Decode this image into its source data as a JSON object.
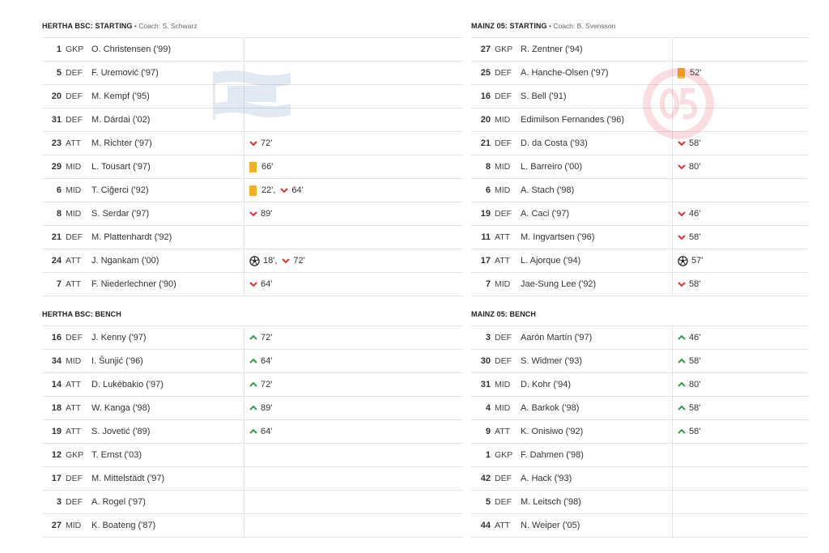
{
  "left": {
    "starting_title": "HERTHA BSC: STARTING",
    "starting_coach": " • Coach: S. Schwarz",
    "bench_title": "HERTHA BSC: BENCH",
    "starting": [
      {
        "num": "1",
        "pos": "GKP",
        "name": "O. Christensen ('99)",
        "events": []
      },
      {
        "num": "5",
        "pos": "DEF",
        "name": "F. Uremović ('97)",
        "events": []
      },
      {
        "num": "20",
        "pos": "DEF",
        "name": "M. Kempf ('95)",
        "events": []
      },
      {
        "num": "31",
        "pos": "DEF",
        "name": "M. Dárdai ('02)",
        "events": []
      },
      {
        "num": "23",
        "pos": "ATT",
        "name": "M. Richter ('97)",
        "events": [
          {
            "type": "sub-out",
            "min": "72'"
          }
        ]
      },
      {
        "num": "29",
        "pos": "MID",
        "name": "L. Tousart ('97)",
        "events": [
          {
            "type": "yellow",
            "min": "66'"
          }
        ]
      },
      {
        "num": "6",
        "pos": "MID",
        "name": "T. Ciğerci ('92)",
        "events": [
          {
            "type": "yellow",
            "min": "22',"
          },
          {
            "type": "sub-out",
            "min": "64'"
          }
        ]
      },
      {
        "num": "8",
        "pos": "MID",
        "name": "S. Serdar ('97)",
        "events": [
          {
            "type": "sub-out",
            "min": "89'"
          }
        ]
      },
      {
        "num": "21",
        "pos": "DEF",
        "name": "M. Plattenhardt ('92)",
        "events": []
      },
      {
        "num": "24",
        "pos": "ATT",
        "name": "J. Ngankam ('00)",
        "events": [
          {
            "type": "goal",
            "min": "18',"
          },
          {
            "type": "sub-out",
            "min": "72'"
          }
        ]
      },
      {
        "num": "7",
        "pos": "ATT",
        "name": "F. Niederlechner ('90)",
        "events": [
          {
            "type": "sub-out",
            "min": "64'"
          }
        ]
      }
    ],
    "bench": [
      {
        "num": "16",
        "pos": "DEF",
        "name": "J. Kenny ('97)",
        "events": [
          {
            "type": "sub-in",
            "min": "72'"
          }
        ]
      },
      {
        "num": "34",
        "pos": "MID",
        "name": "I. Šunjić ('96)",
        "events": [
          {
            "type": "sub-in",
            "min": "64'"
          }
        ]
      },
      {
        "num": "14",
        "pos": "ATT",
        "name": "D. Lukébakio ('97)",
        "events": [
          {
            "type": "sub-in",
            "min": "72'"
          }
        ]
      },
      {
        "num": "18",
        "pos": "ATT",
        "name": "W. Kanga ('98)",
        "events": [
          {
            "type": "sub-in",
            "min": "89'"
          }
        ]
      },
      {
        "num": "19",
        "pos": "ATT",
        "name": "S. Jovetić ('89)",
        "events": [
          {
            "type": "sub-in",
            "min": "64'"
          }
        ]
      },
      {
        "num": "12",
        "pos": "GKP",
        "name": "T. Ernst ('03)",
        "events": []
      },
      {
        "num": "17",
        "pos": "DEF",
        "name": "M. Mittelstädt ('97)",
        "events": []
      },
      {
        "num": "3",
        "pos": "DEF",
        "name": "A. Rogel ('97)",
        "events": []
      },
      {
        "num": "27",
        "pos": "MID",
        "name": "K. Boateng ('87)",
        "events": []
      }
    ]
  },
  "right": {
    "starting_title": "MAINZ 05: STARTING",
    "starting_coach": " • Coach: B. Svensson",
    "bench_title": "MAINZ 05: BENCH",
    "starting": [
      {
        "num": "27",
        "pos": "GKP",
        "name": "R. Zentner ('94)",
        "events": []
      },
      {
        "num": "25",
        "pos": "DEF",
        "name": "A. Hanche-Olsen ('97)",
        "events": [
          {
            "type": "yellow",
            "min": "52'"
          }
        ]
      },
      {
        "num": "16",
        "pos": "DEF",
        "name": "S. Bell ('91)",
        "events": []
      },
      {
        "num": "20",
        "pos": "MID",
        "name": "Edimilson Fernandes ('96)",
        "events": []
      },
      {
        "num": "21",
        "pos": "DEF",
        "name": "D. da Costa ('93)",
        "events": [
          {
            "type": "sub-out",
            "min": "58'"
          }
        ]
      },
      {
        "num": "8",
        "pos": "MID",
        "name": "L. Barreiro ('00)",
        "events": [
          {
            "type": "sub-out",
            "min": "80'"
          }
        ]
      },
      {
        "num": "6",
        "pos": "MID",
        "name": "A. Stach ('98)",
        "events": []
      },
      {
        "num": "19",
        "pos": "DEF",
        "name": "A. Caci ('97)",
        "events": [
          {
            "type": "sub-out",
            "min": "46'"
          }
        ]
      },
      {
        "num": "11",
        "pos": "ATT",
        "name": "M. Ingvartsen ('96)",
        "events": [
          {
            "type": "sub-out",
            "min": "58'"
          }
        ]
      },
      {
        "num": "17",
        "pos": "ATT",
        "name": "L. Ajorque ('94)",
        "events": [
          {
            "type": "goal",
            "min": "57'"
          }
        ]
      },
      {
        "num": "7",
        "pos": "MID",
        "name": "Jae-Sung Lee ('92)",
        "events": [
          {
            "type": "sub-out",
            "min": "58'"
          }
        ]
      }
    ],
    "bench": [
      {
        "num": "3",
        "pos": "DEF",
        "name": "Aarón Martín ('97)",
        "events": [
          {
            "type": "sub-in",
            "min": "46'"
          }
        ]
      },
      {
        "num": "30",
        "pos": "DEF",
        "name": "S. Widmer ('93)",
        "events": [
          {
            "type": "sub-in",
            "min": "58'"
          }
        ]
      },
      {
        "num": "31",
        "pos": "MID",
        "name": "D. Kohr ('94)",
        "events": [
          {
            "type": "sub-in",
            "min": "80'"
          }
        ]
      },
      {
        "num": "4",
        "pos": "MID",
        "name": "A. Barkok ('98)",
        "events": [
          {
            "type": "sub-in",
            "min": "58'"
          }
        ]
      },
      {
        "num": "9",
        "pos": "ATT",
        "name": "K. Onisiwo ('92)",
        "events": [
          {
            "type": "sub-in",
            "min": "58'"
          }
        ]
      },
      {
        "num": "1",
        "pos": "GKP",
        "name": "F. Dahmen ('98)",
        "events": []
      },
      {
        "num": "42",
        "pos": "DEF",
        "name": "A. Hack ('93)",
        "events": []
      },
      {
        "num": "5",
        "pos": "DEF",
        "name": "M. Leitsch ('98)",
        "events": []
      },
      {
        "num": "44",
        "pos": "ATT",
        "name": "N. Weiper ('05)",
        "events": []
      }
    ]
  },
  "colors": {
    "sub_out": "#e03030",
    "sub_in": "#2e9e4a",
    "yellow": "#f5b020"
  },
  "icons": {
    "sub_out": "chevron-down-icon",
    "sub_in": "chevron-up-icon",
    "yellow": "yellow-card-icon",
    "goal": "ball-icon",
    "left_logo": "hertha-flag-logo",
    "right_logo": "mainz-05-logo"
  }
}
